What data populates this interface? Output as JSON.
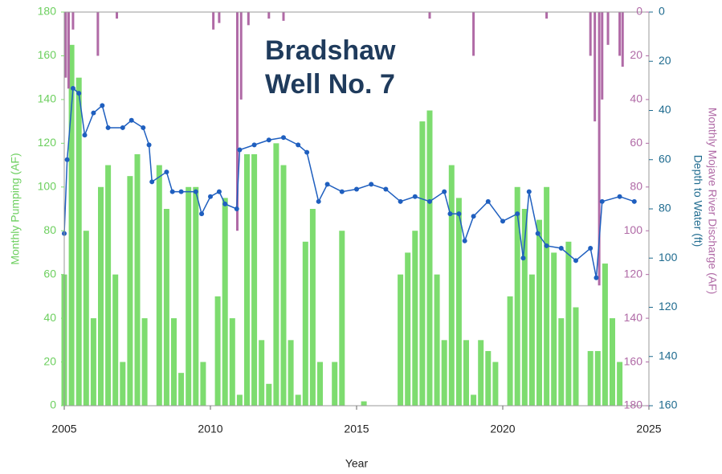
{
  "chart_data": {
    "type": "combo",
    "title": "Bradshaw Well No. 7",
    "xlabel": "Year",
    "ylabel": "Monthly Pumping (AF)",
    "y2label": "Depth to Water (ft)",
    "y3label": "Monthly Mojave River Discharge (AF)",
    "xlim": [
      2005,
      2025
    ],
    "xticks": [
      2005,
      2010,
      2015,
      2020,
      2025
    ],
    "ylim": [
      0,
      180
    ],
    "yticks": [
      0,
      20,
      40,
      60,
      80,
      100,
      120,
      140,
      160,
      180
    ],
    "y2lim": [
      0,
      160
    ],
    "y2ticks": [
      0,
      20,
      40,
      60,
      80,
      100,
      120,
      140,
      160
    ],
    "y2_inverted": true,
    "y3lim": [
      0,
      180
    ],
    "y3ticks": [
      0,
      20,
      40,
      60,
      80,
      100,
      120,
      140,
      160,
      180
    ],
    "y3_inverted": true,
    "series": [
      {
        "kind": "bar",
        "axis": "y",
        "color": "#7ddc6f",
        "x": [
          2005.0,
          2005.25,
          2005.5,
          2005.75,
          2006.0,
          2006.25,
          2006.5,
          2006.75,
          2007.0,
          2007.25,
          2007.5,
          2007.75,
          2008.0,
          2008.25,
          2008.5,
          2008.75,
          2009.0,
          2009.25,
          2009.5,
          2009.75,
          2010.0,
          2010.25,
          2010.5,
          2010.75,
          2011.0,
          2011.25,
          2011.5,
          2011.75,
          2012.0,
          2012.25,
          2012.5,
          2012.75,
          2013.0,
          2013.25,
          2013.5,
          2013.75,
          2014.0,
          2014.25,
          2014.5,
          2014.75,
          2015.0,
          2015.25,
          2015.5,
          2015.75,
          2016.0,
          2016.25,
          2016.5,
          2016.75,
          2017.0,
          2017.25,
          2017.5,
          2017.75,
          2018.0,
          2018.25,
          2018.5,
          2018.75,
          2019.0,
          2019.25,
          2019.5,
          2019.75,
          2020.0,
          2020.25,
          2020.5,
          2020.75,
          2021.0,
          2021.25,
          2021.5,
          2021.75,
          2022.0,
          2022.25,
          2022.5,
          2022.75,
          2023.0,
          2023.25,
          2023.5,
          2023.75,
          2024.0
        ],
        "values": [
          60,
          165,
          150,
          80,
          40,
          100,
          110,
          60,
          20,
          105,
          115,
          40,
          0,
          110,
          90,
          40,
          15,
          100,
          100,
          20,
          0,
          50,
          95,
          40,
          5,
          115,
          115,
          30,
          10,
          120,
          110,
          30,
          5,
          75,
          90,
          20,
          0,
          20,
          80,
          0,
          0,
          2,
          0,
          0,
          0,
          0,
          60,
          70,
          80,
          130,
          135,
          60,
          30,
          110,
          95,
          30,
          5,
          30,
          25,
          20,
          0,
          50,
          100,
          90,
          60,
          85,
          100,
          70,
          40,
          75,
          45,
          0,
          25,
          25,
          65,
          40,
          20
        ]
      },
      {
        "kind": "bar",
        "axis": "y3",
        "color": "#b06aa6",
        "x": [
          2005.05,
          2005.15,
          2005.3,
          2006.15,
          2006.8,
          2010.1,
          2010.3,
          2010.92,
          2011.05,
          2011.3,
          2012.0,
          2012.5,
          2017.5,
          2019.0,
          2021.5,
          2023.0,
          2023.15,
          2023.3,
          2023.4,
          2023.6,
          2024.0,
          2024.1
        ],
        "values": [
          30,
          35,
          8,
          20,
          3,
          8,
          5,
          100,
          40,
          6,
          3,
          4,
          3,
          20,
          3,
          20,
          50,
          125,
          40,
          15,
          20,
          25
        ]
      },
      {
        "kind": "line",
        "axis": "y2",
        "color": "#1f5fbf",
        "x": [
          2005.0,
          2005.1,
          2005.3,
          2005.5,
          2005.7,
          2006.0,
          2006.3,
          2006.5,
          2007.0,
          2007.3,
          2007.7,
          2007.9,
          2008.0,
          2008.5,
          2008.7,
          2009.0,
          2009.5,
          2009.7,
          2010.0,
          2010.3,
          2010.5,
          2010.9,
          2011.0,
          2011.5,
          2012.0,
          2012.5,
          2013.0,
          2013.3,
          2013.7,
          2014.0,
          2014.5,
          2015.0,
          2015.5,
          2016.0,
          2016.5,
          2017.0,
          2017.5,
          2018.0,
          2018.2,
          2018.5,
          2018.7,
          2019.0,
          2019.5,
          2020.0,
          2020.5,
          2020.7,
          2020.9,
          2021.2,
          2021.5,
          2022.0,
          2022.5,
          2023.0,
          2023.2,
          2023.4,
          2024.0,
          2024.5
        ],
        "values": [
          90,
          60,
          31,
          33,
          50,
          41,
          38,
          47,
          47,
          44,
          47,
          54,
          69,
          65,
          73,
          73,
          73,
          82,
          75,
          73,
          78,
          80,
          56,
          54,
          52,
          51,
          54,
          57,
          77,
          70,
          73,
          72,
          70,
          72,
          77,
          75,
          77,
          73,
          82,
          82,
          93,
          83,
          77,
          85,
          82,
          100,
          73,
          90,
          95,
          96,
          101,
          96,
          108,
          77,
          75,
          77
        ]
      }
    ]
  }
}
